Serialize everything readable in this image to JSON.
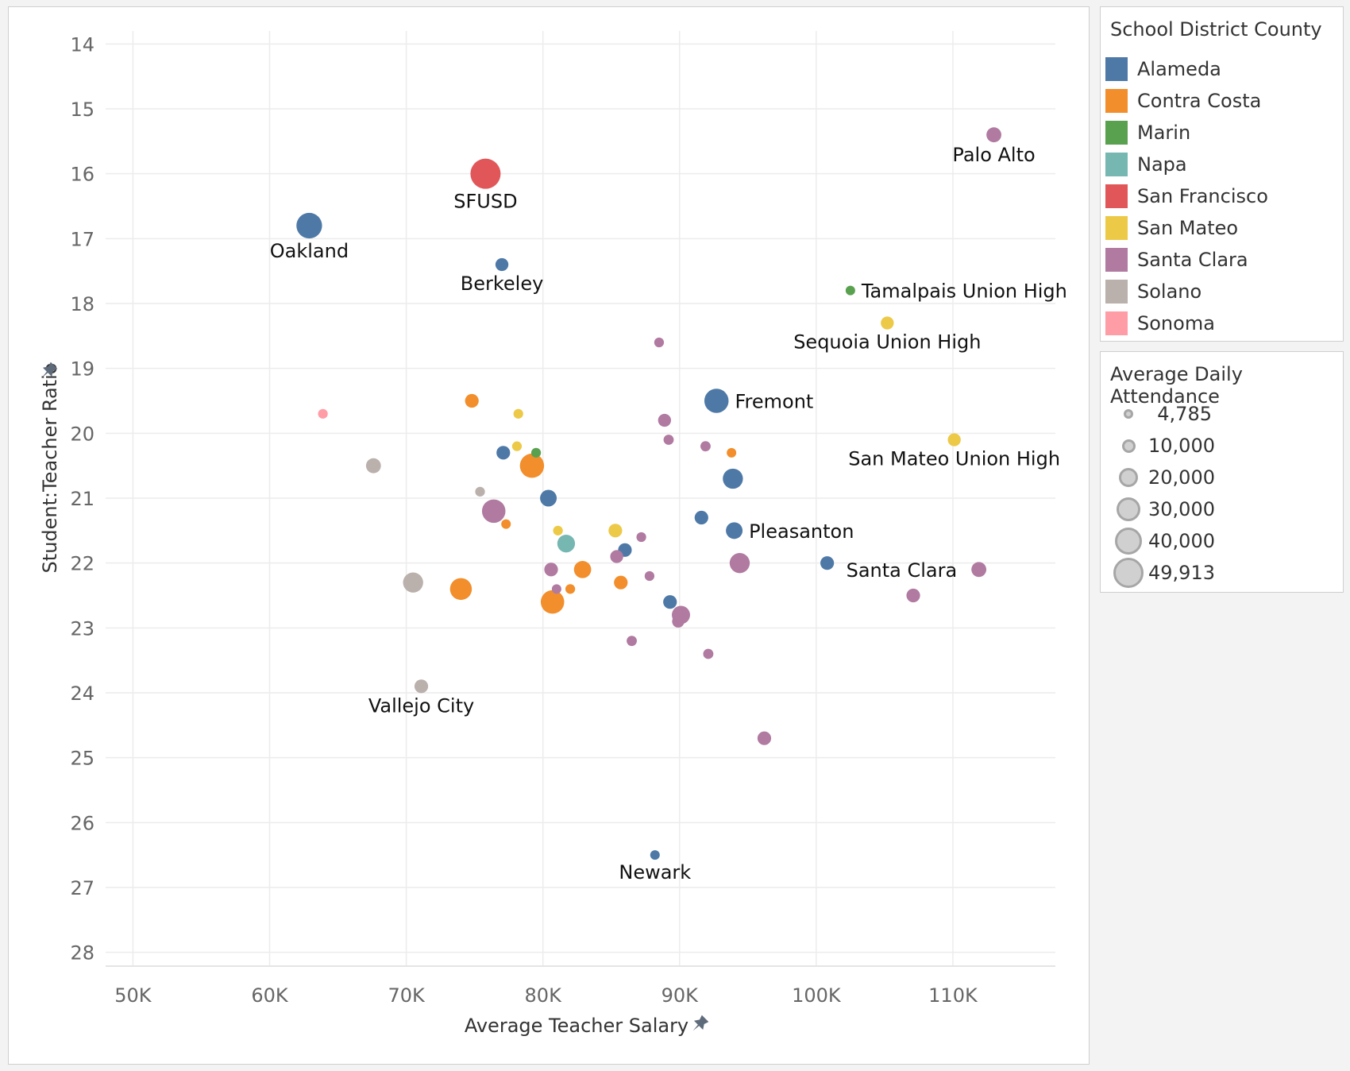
{
  "chart_data": {
    "type": "scatter",
    "xlabel": "Average Teacher Salary",
    "ylabel": "Student:Teacher Ratio",
    "xlim": [
      48000,
      117500
    ],
    "ylim": [
      13.8,
      28.2
    ],
    "y_reversed": true,
    "grid": true,
    "x_ticks": [
      {
        "value": 50000,
        "label": "50K"
      },
      {
        "value": 60000,
        "label": "60K"
      },
      {
        "value": 70000,
        "label": "70K"
      },
      {
        "value": 80000,
        "label": "80K"
      },
      {
        "value": 90000,
        "label": "90K"
      },
      {
        "value": 100000,
        "label": "100K"
      },
      {
        "value": 110000,
        "label": "110K"
      }
    ],
    "y_ticks": [
      14,
      15,
      16,
      17,
      18,
      19,
      20,
      21,
      22,
      23,
      24,
      25,
      26,
      27,
      28
    ],
    "color_legend": {
      "title": "School District County",
      "placement": "right",
      "items": [
        {
          "name": "Alameda",
          "color": "#4e79a7"
        },
        {
          "name": "Contra Costa",
          "color": "#f28e2b"
        },
        {
          "name": "Marin",
          "color": "#59a14f"
        },
        {
          "name": "Napa",
          "color": "#76b7b2"
        },
        {
          "name": "San Francisco",
          "color": "#e15759"
        },
        {
          "name": "San Mateo",
          "color": "#edc948"
        },
        {
          "name": "Santa Clara",
          "color": "#b07aa1"
        },
        {
          "name": "Solano",
          "color": "#bab0ac"
        },
        {
          "name": "Sonoma",
          "color": "#ff9da7"
        }
      ]
    },
    "size_legend": {
      "title": "Average Daily Attendance",
      "placement": "right",
      "items": [
        {
          "value": 4785,
          "label": "4,785"
        },
        {
          "value": 10000,
          "label": "10,000"
        },
        {
          "value": 20000,
          "label": "20,000"
        },
        {
          "value": 30000,
          "label": "30,000"
        },
        {
          "value": 40000,
          "label": "40,000"
        },
        {
          "value": 49913,
          "label": "49,913"
        }
      ]
    },
    "points": [
      {
        "x": 113000,
        "y": 15.4,
        "county": "Santa Clara",
        "ada": 12000,
        "label": "Palo Alto"
      },
      {
        "x": 75800,
        "y": 16.0,
        "county": "San Francisco",
        "ada": 49913,
        "label": "SFUSD"
      },
      {
        "x": 62900,
        "y": 16.8,
        "county": "Alameda",
        "ada": 36000,
        "label": "Oakland"
      },
      {
        "x": 77000,
        "y": 17.4,
        "county": "Alameda",
        "ada": 9000,
        "label": "Berkeley"
      },
      {
        "x": 102500,
        "y": 17.8,
        "county": "Marin",
        "ada": 4785,
        "label": "Tamalpais Union High"
      },
      {
        "x": 105200,
        "y": 18.3,
        "county": "San Mateo",
        "ada": 9000,
        "label": "Sequoia Union High"
      },
      {
        "x": 88500,
        "y": 18.6,
        "county": "Santa Clara",
        "ada": 5000
      },
      {
        "x": 92700,
        "y": 19.5,
        "county": "Alameda",
        "ada": 32000,
        "label": "Fremont"
      },
      {
        "x": 74800,
        "y": 19.5,
        "county": "Contra Costa",
        "ada": 10000
      },
      {
        "x": 63900,
        "y": 19.7,
        "county": "Sonoma",
        "ada": 5000
      },
      {
        "x": 78200,
        "y": 19.7,
        "county": "San Mateo",
        "ada": 5000
      },
      {
        "x": 88900,
        "y": 19.8,
        "county": "Santa Clara",
        "ada": 9000
      },
      {
        "x": 110100,
        "y": 20.1,
        "county": "San Mateo",
        "ada": 9000,
        "label": "San Mateo Union High"
      },
      {
        "x": 89200,
        "y": 20.1,
        "county": "Santa Clara",
        "ada": 5500
      },
      {
        "x": 78100,
        "y": 20.2,
        "county": "San Mateo",
        "ada": 5000
      },
      {
        "x": 91900,
        "y": 20.2,
        "county": "Santa Clara",
        "ada": 5500
      },
      {
        "x": 77100,
        "y": 20.3,
        "county": "Alameda",
        "ada": 10000
      },
      {
        "x": 79500,
        "y": 20.3,
        "county": "Marin",
        "ada": 5000
      },
      {
        "x": 93800,
        "y": 20.3,
        "county": "Contra Costa",
        "ada": 4785
      },
      {
        "x": 67600,
        "y": 20.5,
        "county": "Solano",
        "ada": 12000
      },
      {
        "x": 79200,
        "y": 20.5,
        "county": "Contra Costa",
        "ada": 32000
      },
      {
        "x": 93900,
        "y": 20.7,
        "county": "Alameda",
        "ada": 22000
      },
      {
        "x": 75400,
        "y": 20.9,
        "county": "Solano",
        "ada": 5000
      },
      {
        "x": 80400,
        "y": 21.0,
        "county": "Alameda",
        "ada": 15000
      },
      {
        "x": 76400,
        "y": 21.2,
        "county": "Santa Clara",
        "ada": 30000
      },
      {
        "x": 91600,
        "y": 21.3,
        "county": "Alameda",
        "ada": 10000
      },
      {
        "x": 77300,
        "y": 21.4,
        "county": "Contra Costa",
        "ada": 4785
      },
      {
        "x": 81100,
        "y": 21.5,
        "county": "San Mateo",
        "ada": 5000
      },
      {
        "x": 85300,
        "y": 21.5,
        "county": "San Mateo",
        "ada": 10000
      },
      {
        "x": 94000,
        "y": 21.5,
        "county": "Alameda",
        "ada": 15000,
        "label": "Pleasanton"
      },
      {
        "x": 87200,
        "y": 21.6,
        "county": "Santa Clara",
        "ada": 5000
      },
      {
        "x": 81700,
        "y": 21.7,
        "county": "Napa",
        "ada": 17000
      },
      {
        "x": 86000,
        "y": 21.8,
        "county": "Alameda",
        "ada": 10000
      },
      {
        "x": 85400,
        "y": 21.9,
        "county": "Santa Clara",
        "ada": 9000
      },
      {
        "x": 100800,
        "y": 22.0,
        "county": "Alameda",
        "ada": 10000
      },
      {
        "x": 94400,
        "y": 22.0,
        "county": "Santa Clara",
        "ada": 22000
      },
      {
        "x": 80600,
        "y": 22.1,
        "county": "Santa Clara",
        "ada": 10000
      },
      {
        "x": 82900,
        "y": 22.1,
        "county": "Contra Costa",
        "ada": 16000
      },
      {
        "x": 111900,
        "y": 22.1,
        "county": "Santa Clara",
        "ada": 12000,
        "label": "Santa Clara"
      },
      {
        "x": 87800,
        "y": 22.2,
        "county": "Santa Clara",
        "ada": 5000
      },
      {
        "x": 70500,
        "y": 22.3,
        "county": "Solano",
        "ada": 22000
      },
      {
        "x": 85700,
        "y": 22.3,
        "county": "Contra Costa",
        "ada": 10000
      },
      {
        "x": 74000,
        "y": 22.4,
        "county": "Contra Costa",
        "ada": 26000
      },
      {
        "x": 81000,
        "y": 22.4,
        "county": "Santa Clara",
        "ada": 4785
      },
      {
        "x": 82000,
        "y": 22.4,
        "county": "Contra Costa",
        "ada": 5000
      },
      {
        "x": 107100,
        "y": 22.5,
        "county": "Santa Clara",
        "ada": 10000
      },
      {
        "x": 80700,
        "y": 22.6,
        "county": "Contra Costa",
        "ada": 30000
      },
      {
        "x": 89300,
        "y": 22.6,
        "county": "Alameda",
        "ada": 10000
      },
      {
        "x": 90100,
        "y": 22.8,
        "county": "Santa Clara",
        "ada": 18000
      },
      {
        "x": 89900,
        "y": 22.9,
        "county": "Santa Clara",
        "ada": 8000
      },
      {
        "x": 86500,
        "y": 23.2,
        "county": "Santa Clara",
        "ada": 5500
      },
      {
        "x": 92100,
        "y": 23.4,
        "county": "Santa Clara",
        "ada": 5500
      },
      {
        "x": 71100,
        "y": 23.9,
        "county": "Solano",
        "ada": 10000,
        "label": "Vallejo City"
      },
      {
        "x": 96200,
        "y": 24.7,
        "county": "Santa Clara",
        "ada": 10000
      },
      {
        "x": 88200,
        "y": 26.5,
        "county": "Alameda",
        "ada": 4785,
        "label": "Newark"
      }
    ]
  }
}
